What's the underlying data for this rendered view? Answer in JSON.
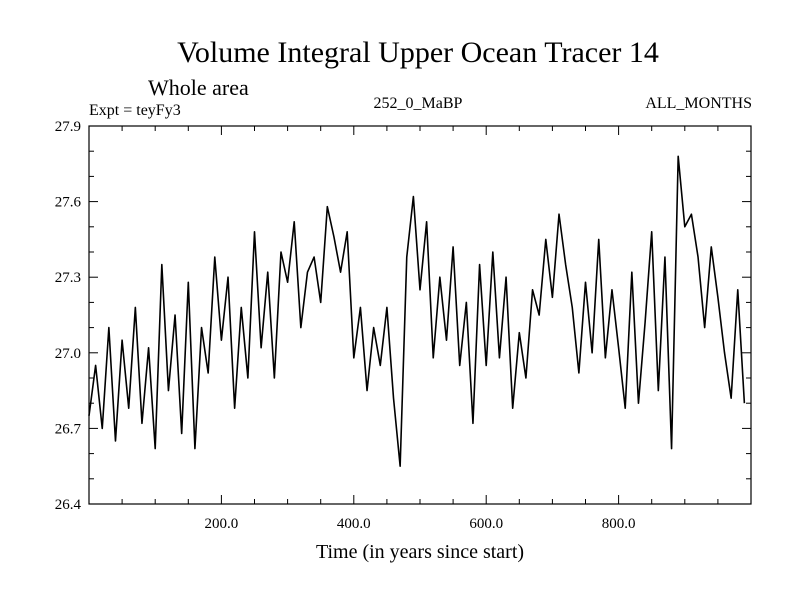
{
  "chart_data": {
    "type": "line",
    "title": "Volume Integral Upper Ocean Tracer 14",
    "subtitle": "Whole area",
    "experiment_label": "Expt = teyFy3",
    "run_label": "252_0_MaBP",
    "months_label": "ALL_MONTHS",
    "xlabel": "Time (in years since start)",
    "ylabel": "",
    "xlim": [
      0,
      1000
    ],
    "ylim": [
      26.4,
      27.9
    ],
    "x_ticks": [
      200,
      400,
      600,
      800
    ],
    "x_tick_labels": [
      "200.0",
      "400.0",
      "600.0",
      "800.0"
    ],
    "y_ticks": [
      26.4,
      26.7,
      27.0,
      27.3,
      27.6,
      27.9
    ],
    "y_tick_labels": [
      "26.4",
      "26.7",
      "27.0",
      "27.3",
      "27.6",
      "27.9"
    ],
    "grid": false,
    "series": [
      {
        "name": "Tracer 14",
        "x_start": 0,
        "x_step": 10,
        "values": [
          26.75,
          26.95,
          26.7,
          27.1,
          26.65,
          27.05,
          26.78,
          27.18,
          26.72,
          27.02,
          26.62,
          27.35,
          26.85,
          27.15,
          26.68,
          27.28,
          26.62,
          27.1,
          26.92,
          27.38,
          27.05,
          27.3,
          26.78,
          27.18,
          26.9,
          27.48,
          27.02,
          27.32,
          26.9,
          27.4,
          27.28,
          27.52,
          27.1,
          27.32,
          27.38,
          27.2,
          27.58,
          27.46,
          27.32,
          27.48,
          26.98,
          27.18,
          26.85,
          27.1,
          26.95,
          27.18,
          26.82,
          26.55,
          27.38,
          27.62,
          27.25,
          27.52,
          26.98,
          27.3,
          27.05,
          27.42,
          26.95,
          27.2,
          26.72,
          27.35,
          26.95,
          27.4,
          26.98,
          27.3,
          26.78,
          27.08,
          26.9,
          27.25,
          27.15,
          27.45,
          27.22,
          27.55,
          27.35,
          27.18,
          26.92,
          27.28,
          27.0,
          27.45,
          26.98,
          27.25,
          27.02,
          26.78,
          27.32,
          26.8,
          27.12,
          27.48,
          26.85,
          27.38,
          26.62,
          27.78,
          27.5,
          27.55,
          27.38,
          27.1,
          27.42,
          27.22,
          27.0,
          26.82,
          27.25,
          26.8
        ]
      }
    ]
  }
}
